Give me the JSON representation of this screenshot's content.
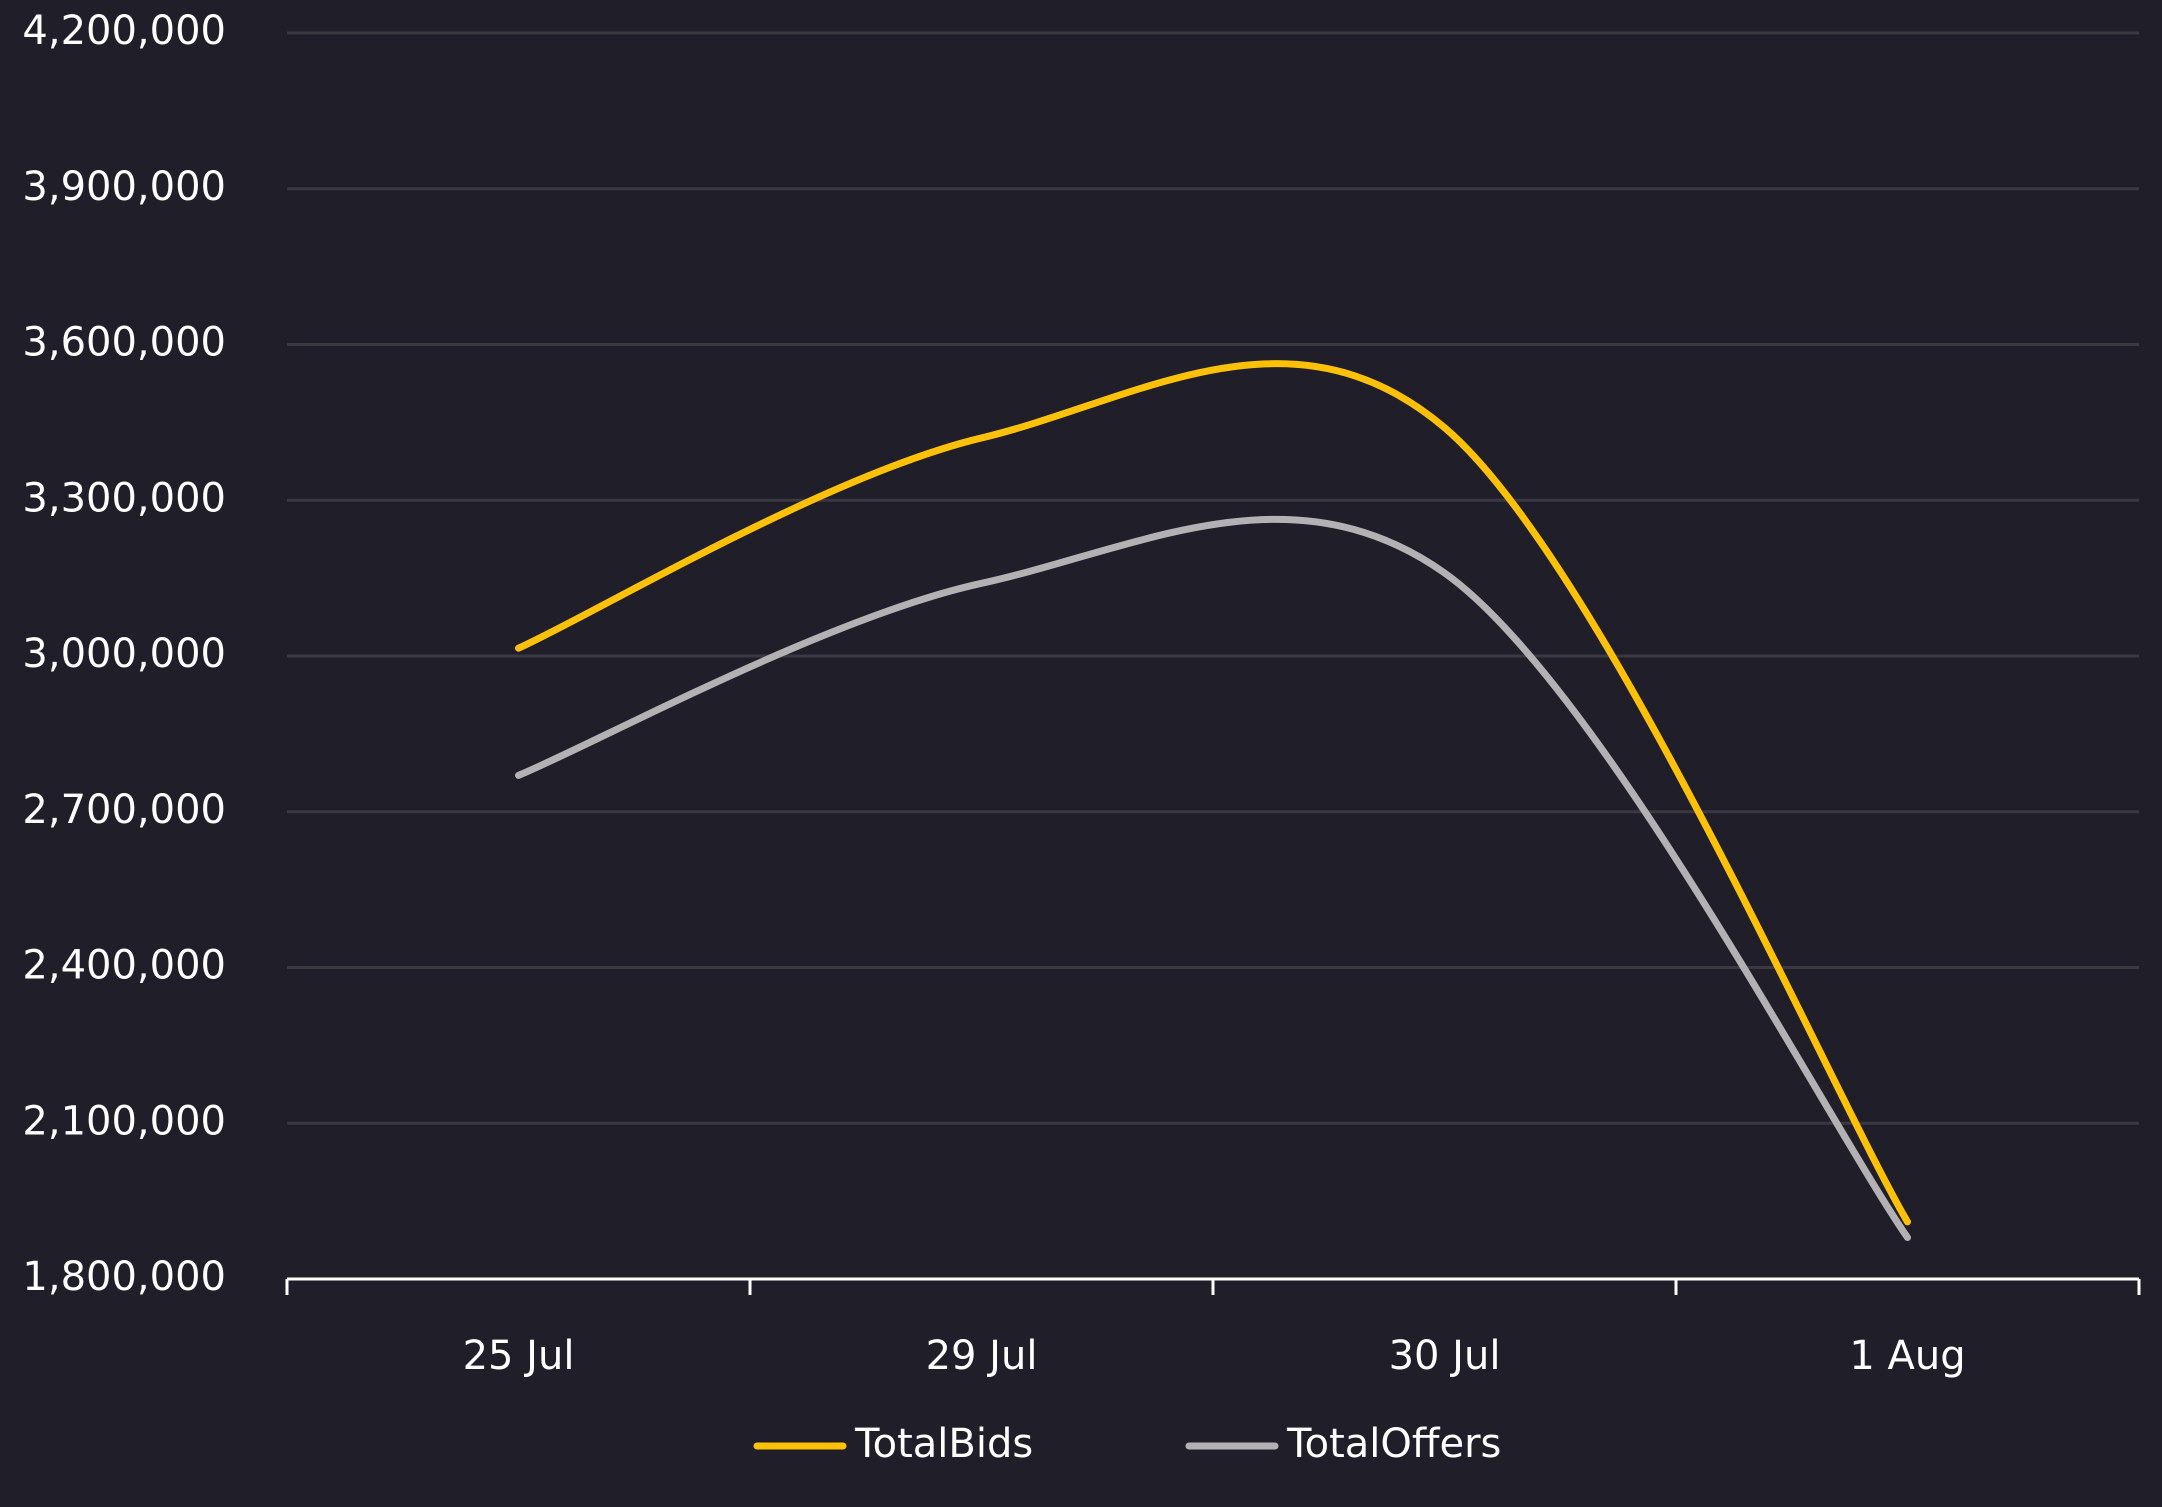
{
  "chart_data": {
    "type": "line",
    "title": "",
    "xlabel": "",
    "ylabel": "",
    "categories": [
      "25 Jul",
      "29 Jul",
      "30 Jul",
      "1 Aug"
    ],
    "y_ticks": [
      "1,800,000",
      "2,100,000",
      "2,400,000",
      "2,700,000",
      "3,000,000",
      "3,300,000",
      "3,600,000",
      "3,900,000",
      "4,200,000"
    ],
    "ylim": [
      1800000,
      4200000
    ],
    "grid": true,
    "legend_position": "bottom-center",
    "series": [
      {
        "name": "TotalBids",
        "color": "#ffc107",
        "values": [
          3015000,
          3420000,
          3440000,
          1910000
        ]
      },
      {
        "name": "TotalOffers",
        "color": "#b3b1b4",
        "values": [
          2770000,
          3140000,
          3160000,
          1880000
        ]
      }
    ],
    "colors": {
      "background": "#1f1e29",
      "gridline": "#3a3942",
      "axis": "#ffffff",
      "text": "#ffffff"
    }
  }
}
